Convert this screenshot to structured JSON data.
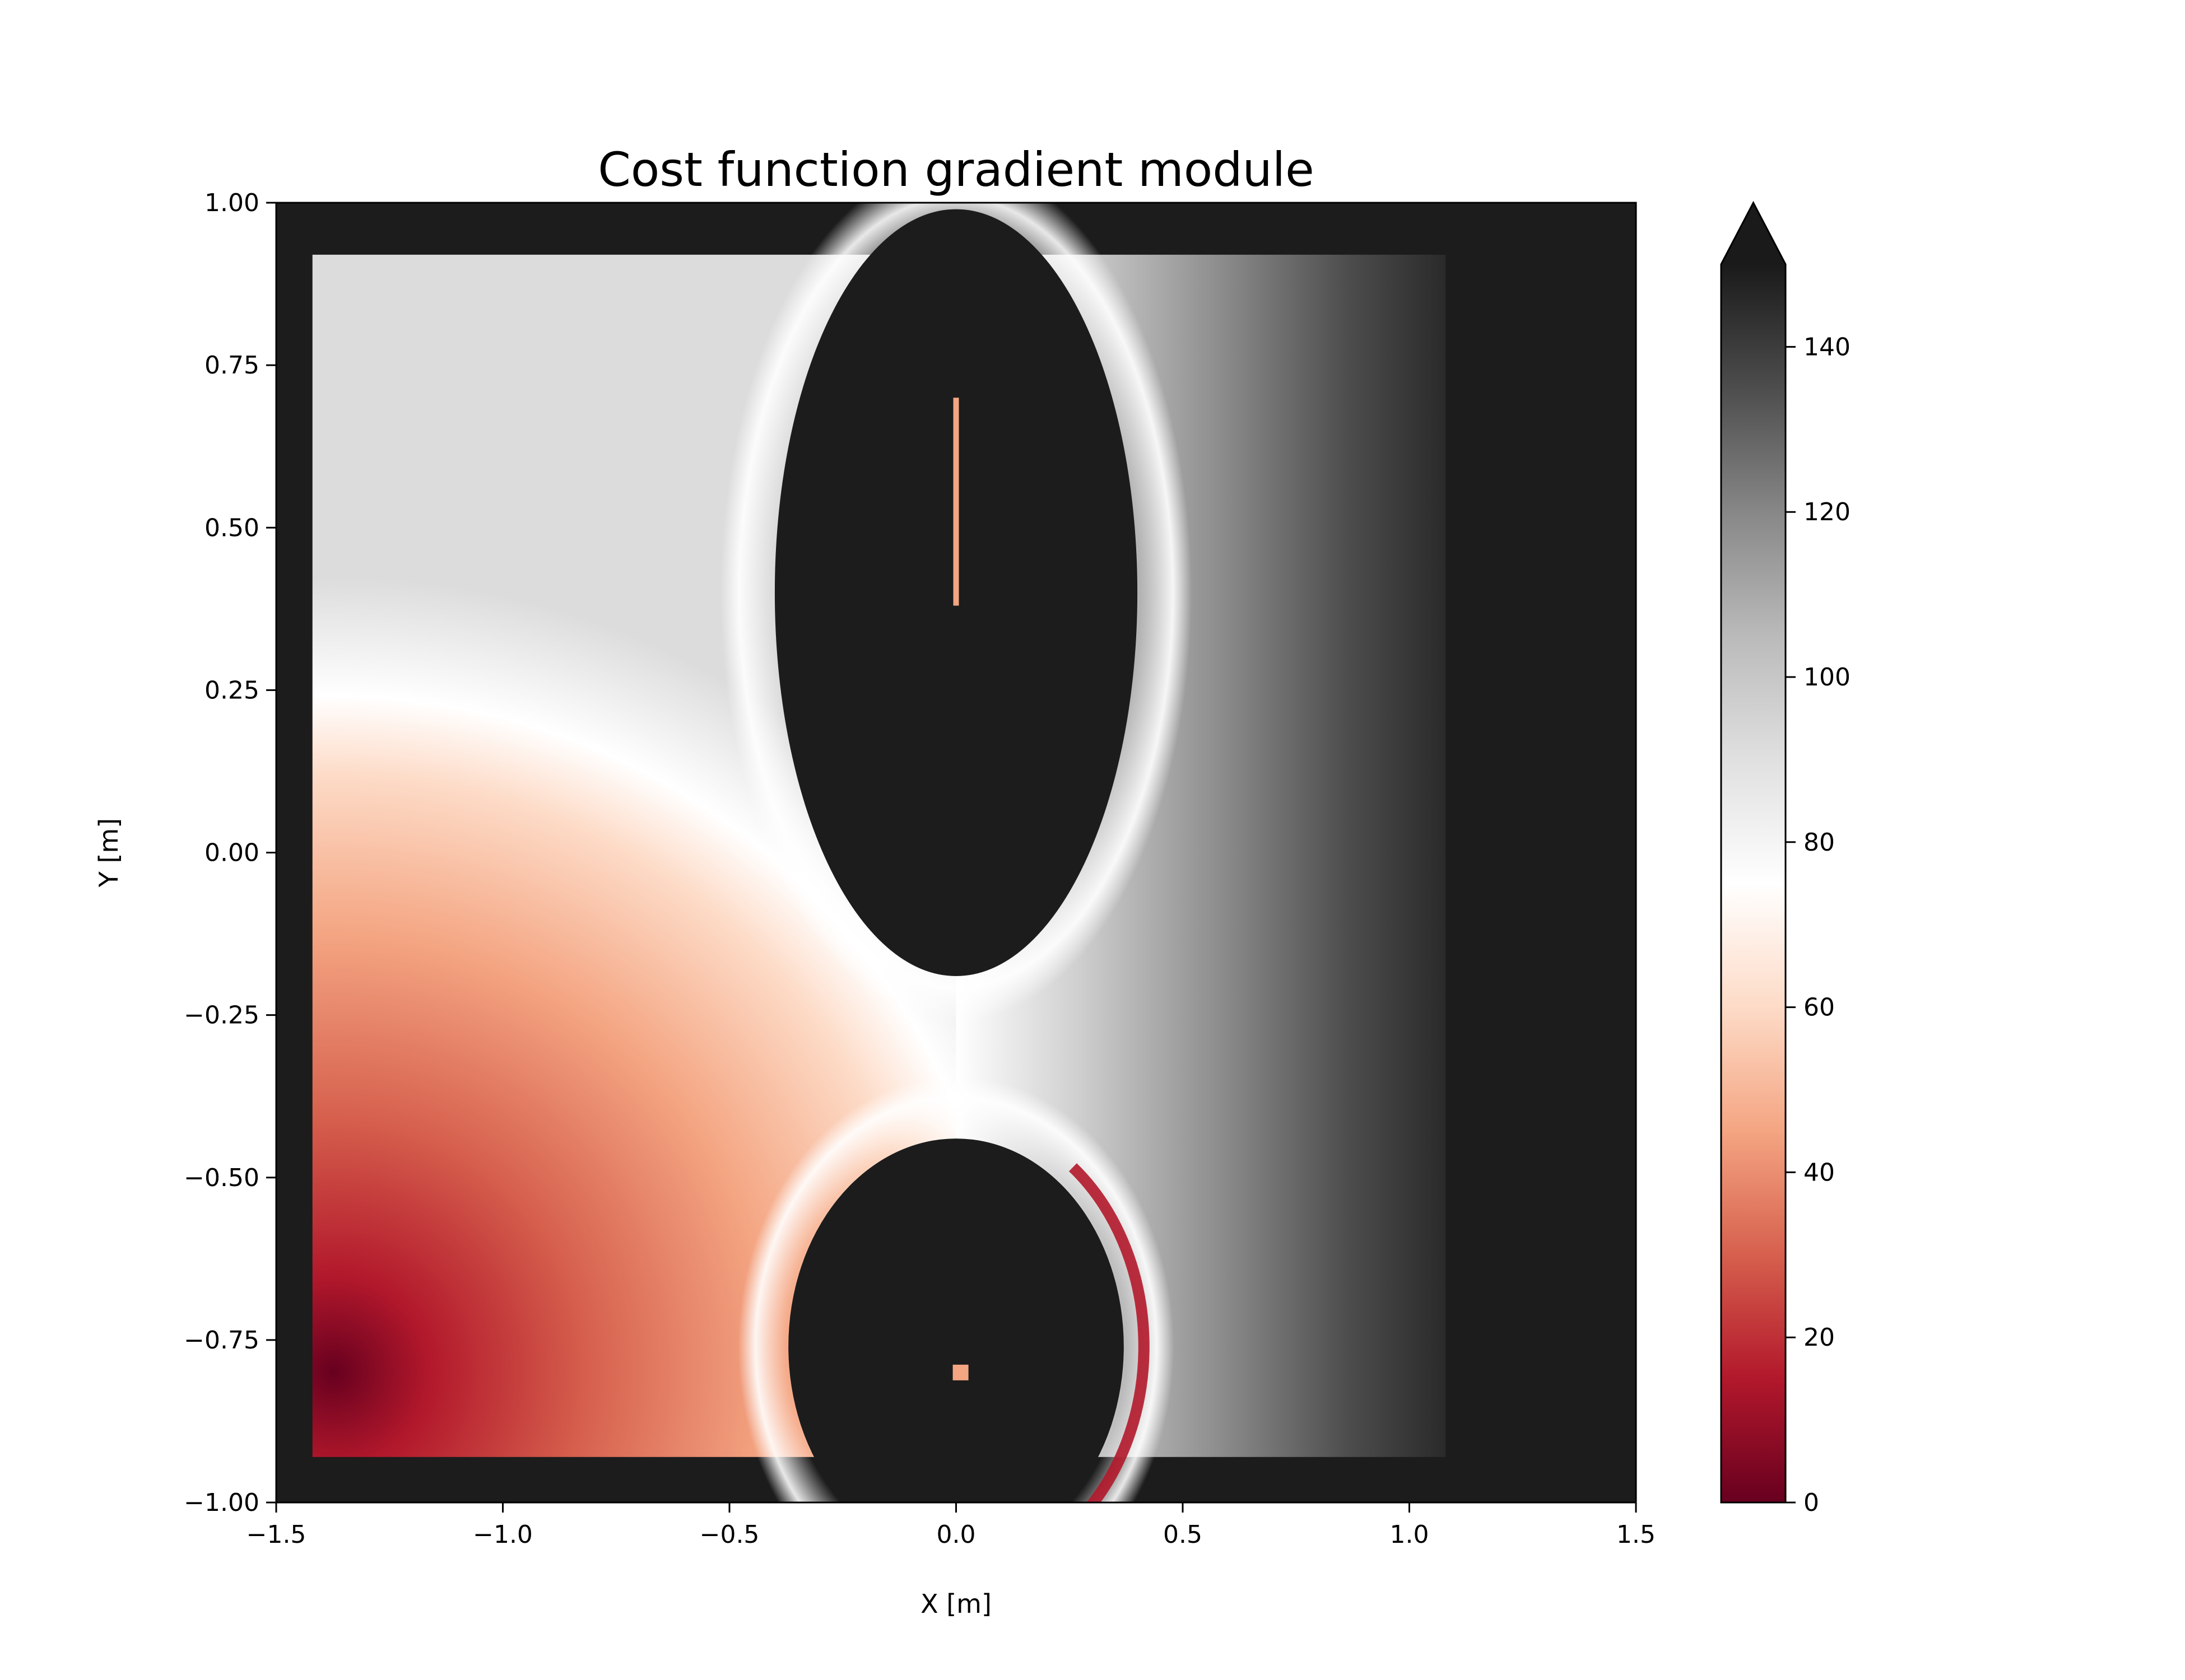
{
  "chart_data": {
    "type": "heatmap",
    "title": "Cost function gradient module",
    "xlabel": "X [m]",
    "ylabel": "Y [m]",
    "xlim": [
      -1.5,
      1.5
    ],
    "ylim": [
      -1.0,
      1.0
    ],
    "xticks": [
      -1.5,
      -1.0,
      -0.5,
      0.0,
      0.5,
      1.0,
      1.5
    ],
    "xtick_labels": [
      "−1.5",
      "−1.0",
      "−0.5",
      "0.0",
      "0.5",
      "1.0",
      "1.5"
    ],
    "yticks": [
      -1.0,
      -0.75,
      -0.5,
      -0.25,
      0.0,
      0.25,
      0.5,
      0.75,
      1.0
    ],
    "ytick_labels": [
      "−1.00",
      "−0.75",
      "−0.50",
      "−0.25",
      "0.00",
      "0.25",
      "0.50",
      "0.75",
      "1.00"
    ],
    "grid": false,
    "colorbar": {
      "range": [
        0,
        150
      ],
      "extend": "max",
      "ticks": [
        0,
        20,
        40,
        60,
        80,
        100,
        120,
        140
      ],
      "tick_labels": [
        "0",
        "20",
        "40",
        "60",
        "80",
        "100",
        "120",
        "140"
      ],
      "colormap": "RdGy",
      "colors": [
        "#67001f",
        "#b2182b",
        "#d6604d",
        "#f4a582",
        "#fddbc7",
        "#ffffff",
        "#e0e0e0",
        "#bababa",
        "#878787",
        "#4d4d4d",
        "#1a1a1a"
      ]
    },
    "regions": [
      {
        "type": "ellipse",
        "cx": 0.0,
        "cy": 0.4,
        "rx": 0.4,
        "ry": 0.59,
        "value": 150
      },
      {
        "type": "ellipse",
        "cx": 0.0,
        "cy": -0.76,
        "rx": 0.37,
        "ry": 0.32,
        "value": 150
      }
    ],
    "domain_rect": {
      "x": [
        -1.42,
        1.08
      ],
      "y": [
        -0.93,
        0.92
      ]
    },
    "minimum_point": {
      "x": -1.38,
      "y": -0.8,
      "value": 0
    }
  }
}
